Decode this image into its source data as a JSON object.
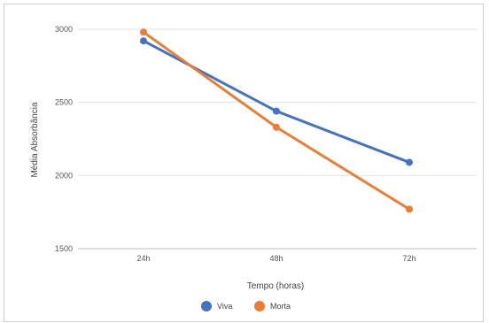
{
  "chart_data": {
    "type": "line",
    "xlabel": "Tempo (horas)",
    "ylabel": "Média Absorbância",
    "categories": [
      "24h",
      "48h",
      "72h"
    ],
    "ylim": [
      1500,
      3000
    ],
    "yticks": [
      1500,
      2000,
      2500,
      3000
    ],
    "grid": true,
    "legend_position": "bottom",
    "series": [
      {
        "name": "Viva",
        "color": "#4472c4",
        "values": [
          2920,
          2440,
          2090
        ]
      },
      {
        "name": "Morta",
        "color": "#ed7d31",
        "values": [
          2980,
          2330,
          1770
        ]
      }
    ]
  }
}
